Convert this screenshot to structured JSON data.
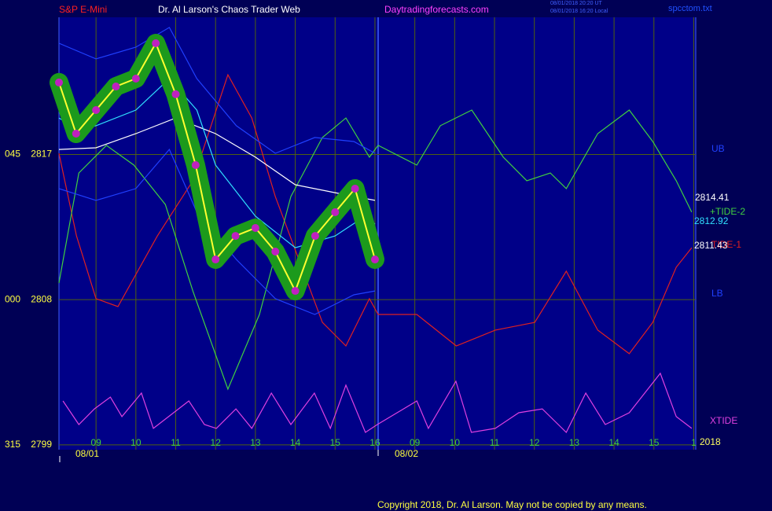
{
  "chart_data": {
    "type": "line",
    "symbol": "S&P E-Mini",
    "title": "Dr. Al Larson's Chaos Trader Web",
    "site": "Daytradingforecasts.com",
    "timestamps": [
      "08/01/2018 20:20 UT",
      "08/01/2018 16:20 Local"
    ],
    "file": "spcctom.txt",
    "copyright": "Copyright 2018, Dr. Al Larson. May not be copied by any means.",
    "date_labels": [
      "08/01",
      "08/02"
    ],
    "angle_labels": [
      "045",
      "000",
      "315"
    ],
    "xlim": [
      0.07,
      16.05
    ],
    "ylim": [
      2798.7,
      2825.5
    ],
    "xticks": [
      {
        "value": 1,
        "label": "09"
      },
      {
        "value": 2,
        "label": "10"
      },
      {
        "value": 3,
        "label": "11"
      },
      {
        "value": 4,
        "label": "12"
      },
      {
        "value": 5,
        "label": "13"
      },
      {
        "value": 6,
        "label": "14"
      },
      {
        "value": 7,
        "label": "15"
      },
      {
        "value": 8,
        "label": "16"
      },
      {
        "value": 9,
        "label": "09"
      },
      {
        "value": 10,
        "label": "10"
      },
      {
        "value": 11,
        "label": "11"
      },
      {
        "value": 12,
        "label": "12"
      },
      {
        "value": 13,
        "label": "13"
      },
      {
        "value": 14,
        "label": "14"
      },
      {
        "value": 15,
        "label": "15"
      },
      {
        "value": 16,
        "label": "1"
      }
    ],
    "yticks": [
      2799,
      2808,
      2817
    ],
    "grid": true,
    "series": [
      {
        "name": "TIDE-1",
        "color": "#e02020",
        "x": [
          0.07,
          0.51,
          1,
          1.55,
          2.54,
          3.43,
          4.31,
          4.91,
          5.5,
          6.09,
          6.68,
          7.27,
          7.86,
          8.08,
          9.05,
          10.04,
          11.02,
          12.01,
          12.8,
          13.59,
          14.38,
          14.97,
          15.56,
          15.95
        ],
        "values": [
          2817.07,
          2811.95,
          2808.06,
          2807.57,
          2811.95,
          2815.37,
          2821.94,
          2819.26,
          2814.39,
          2810.49,
          2806.59,
          2805.13,
          2808.06,
          2807.08,
          2807.08,
          2805.13,
          2806.11,
          2806.59,
          2809.76,
          2806.11,
          2804.65,
          2806.59,
          2810.01,
          2811.22
        ]
      },
      {
        "name": "+TIDE-2",
        "color": "#40d040",
        "x": [
          0.07,
          0.57,
          1.26,
          1.95,
          2.74,
          3.43,
          4.31,
          5.1,
          5.89,
          6.68,
          7.27,
          7.86,
          8.08,
          9.05,
          9.64,
          10.43,
          11.22,
          11.81,
          12.4,
          12.8,
          13.59,
          14.38,
          14.97,
          15.56,
          15.95
        ],
        "values": [
          2809.03,
          2815.85,
          2817.56,
          2816.34,
          2813.9,
          2808.54,
          2802.45,
          2807.08,
          2814.39,
          2818.05,
          2819.26,
          2816.83,
          2817.56,
          2816.34,
          2818.78,
          2819.75,
          2816.83,
          2815.37,
          2815.85,
          2814.88,
          2818.29,
          2819.75,
          2817.8,
          2815.37,
          2813.42
        ]
      },
      {
        "name": "UB",
        "color": "#2040ff",
        "x": [
          0.07,
          1,
          2,
          2.84,
          3.53,
          4.52,
          5.5,
          6.49,
          7.47,
          8
        ],
        "values": [
          2823.89,
          2822.92,
          2823.65,
          2824.87,
          2821.7,
          2818.78,
          2817.07,
          2818.05,
          2817.8,
          2817.07
        ]
      },
      {
        "name": "LB",
        "color": "#2040ff",
        "x": [
          0.07,
          1,
          2,
          2.84,
          3.53,
          4.52,
          5.5,
          6.49,
          7.47,
          8
        ],
        "values": [
          2814.88,
          2814.15,
          2814.88,
          2817.31,
          2813.42,
          2810.49,
          2808.06,
          2807.08,
          2808.3,
          2808.54
        ]
      },
      {
        "name": "XTIDE",
        "color": "#e040e0",
        "x": [
          0.17,
          0.57,
          0.96,
          1.36,
          1.65,
          2.14,
          2.44,
          3.33,
          3.72,
          4.02,
          4.51,
          4.91,
          5.4,
          5.89,
          6.48,
          6.88,
          7.27,
          7.76,
          8.06,
          9.05,
          9.34,
          10.03,
          10.42,
          11.02,
          11.61,
          12.2,
          12.8,
          13.29,
          13.78,
          14.38,
          15.16,
          15.56,
          15.95
        ],
        "values": [
          2801.72,
          2800.26,
          2801.23,
          2801.96,
          2800.75,
          2802.21,
          2800.02,
          2801.72,
          2800.26,
          2800.02,
          2801.23,
          2800.02,
          2802.21,
          2800.26,
          2802.21,
          2800.02,
          2802.7,
          2799.77,
          2800.26,
          2801.72,
          2800.02,
          2802.94,
          2799.77,
          2800.02,
          2800.99,
          2801.23,
          2799.77,
          2802.21,
          2800.26,
          2800.99,
          2803.43,
          2800.75,
          2800.02
        ]
      },
      {
        "color": "#ffffff",
        "x": [
          0.07,
          1,
          2,
          3,
          4,
          5,
          6,
          7,
          8
        ],
        "values": [
          2817.31,
          2817.41,
          2818.29,
          2819.26,
          2818.29,
          2816.83,
          2815.12,
          2814.63,
          2814.15
        ]
      },
      {
        "color": "#30e0ff",
        "x": [
          0.07,
          0.56,
          1,
          2,
          2.84,
          3.53,
          4,
          5,
          6,
          7,
          7.75,
          8
        ],
        "values": [
          2819.26,
          2818.53,
          2818.78,
          2819.75,
          2821.7,
          2819.75,
          2816.34,
          2813.17,
          2811.22,
          2811.95,
          2813.17,
          2812.69
        ]
      },
      {
        "color": "#ffff30",
        "halo": "#1c9a1c",
        "dots": "#c020c0",
        "x": [
          0.07,
          0.5,
          1,
          1.5,
          2,
          2.5,
          3,
          3.5,
          4,
          4.5,
          5,
          5.5,
          6,
          6.5,
          7,
          7.5,
          8
        ],
        "values": [
          2821.46,
          2818.29,
          2819.75,
          2821.21,
          2821.7,
          2823.89,
          2820.73,
          2816.34,
          2810.49,
          2811.95,
          2812.44,
          2810.98,
          2808.54,
          2811.95,
          2813.42,
          2814.88,
          2810.49
        ]
      }
    ],
    "right_labels": [
      {
        "text": "2814.41",
        "color": "#ffffff"
      },
      {
        "text": "2812.92",
        "color": "#30e0ff"
      },
      {
        "text": "2811.43",
        "color": "#ffffff"
      },
      {
        "text": "2018",
        "color": "#ffff60"
      }
    ]
  }
}
